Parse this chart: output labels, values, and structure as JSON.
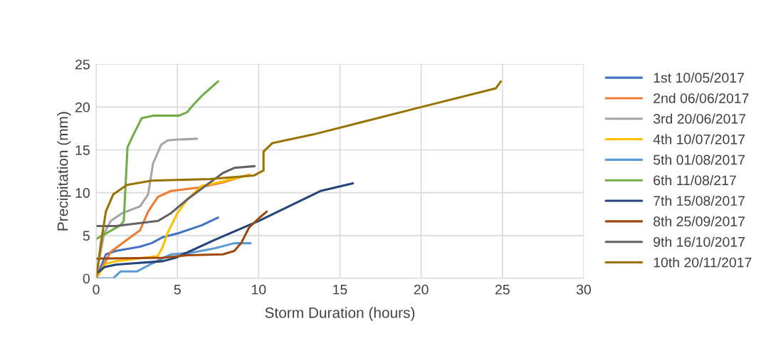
{
  "chart_data": {
    "type": "line",
    "xlabel": "Storm Duration (hours)",
    "ylabel": "Precipitation (mm)",
    "xlim": [
      0,
      30
    ],
    "xticks": [
      0,
      5,
      10,
      15,
      20,
      25,
      30
    ],
    "ylim": [
      0,
      25
    ],
    "yticks": [
      0,
      5,
      10,
      15,
      20,
      25
    ],
    "grid": true,
    "legend": "right",
    "marker": "none",
    "line_style": "solid",
    "series": [
      {
        "name": "1st 10/05/2017",
        "color": "#4472c4",
        "x": [
          0,
          0.6,
          1.2,
          2.7,
          3.4,
          4.1,
          5.1,
          6.5,
          7.5
        ],
        "values": [
          0,
          2.8,
          3.2,
          3.7,
          4.1,
          4.8,
          5.3,
          6.2,
          7.1
        ]
      },
      {
        "name": "2nd 06/06/2017",
        "color": "#ed7d31",
        "x": [
          0,
          0.5,
          0.9,
          1.9,
          2.7,
          3.2,
          3.8,
          4.6,
          6.3,
          7.8,
          9.4
        ],
        "values": [
          0,
          1.7,
          3.1,
          4.5,
          5.6,
          7.8,
          9.5,
          10.2,
          10.6,
          11.2,
          12.1
        ]
      },
      {
        "name": "3rd 20/06/2017",
        "color": "#a5a5a5",
        "x": [
          0,
          0.2,
          0.5,
          0.9,
          1.6,
          2.7,
          3.2,
          3.5,
          4.0,
          4.4,
          5.0,
          6.2
        ],
        "values": [
          0,
          2.3,
          5.3,
          6.7,
          7.6,
          8.4,
          9.8,
          13.4,
          15.6,
          16.1,
          16.2,
          16.3
        ]
      },
      {
        "name": "4th 10/07/2017",
        "color": "#ffc000",
        "x": [
          0,
          0.6,
          1.2,
          3.8,
          4.1,
          4.4,
          5.0,
          5.6,
          6.5,
          7.5,
          9.45
        ],
        "values": [
          0,
          1.7,
          2.0,
          2.6,
          3.7,
          5.3,
          7.6,
          9.2,
          10.8,
          11.2,
          12.1
        ]
      },
      {
        "name": "5th 01/08/2017",
        "color": "#5b9bd5",
        "x": [
          0,
          1.05,
          1.5,
          2.5,
          3.4,
          4.6,
          5.9,
          7.3,
          8.5,
          9.5
        ],
        "values": [
          0,
          0,
          0.8,
          0.8,
          1.7,
          2.8,
          3.0,
          3.5,
          4.1,
          4.1
        ]
      },
      {
        "name": "6th 11/08/217",
        "color": "#70ad47",
        "x": [
          0,
          1.5,
          1.7,
          1.93,
          2.2,
          2.8,
          3.5,
          5.1,
          5.6,
          6.0,
          6.5,
          7.5
        ],
        "values": [
          4.6,
          6.2,
          6.7,
          15.3,
          16.4,
          18.7,
          19.0,
          19.0,
          19.4,
          20.3,
          21.3,
          23
        ]
      },
      {
        "name": "7th 15/08/2017",
        "color": "#264478",
        "x": [
          0,
          0.5,
          1.2,
          1.9,
          4.1,
          4.9,
          7.3,
          10,
          13.8,
          15.8
        ],
        "values": [
          0.5,
          1.3,
          1.6,
          1.7,
          2.0,
          2.4,
          4.5,
          6.7,
          10.2,
          11.1
        ]
      },
      {
        "name": "8th 25/09/2017",
        "color": "#9e480e",
        "x": [
          0,
          4.1,
          5.6,
          7.8,
          8.5,
          8.95,
          9.4,
          10,
          10.5
        ],
        "values": [
          2.3,
          2.4,
          2.7,
          2.8,
          3.2,
          4.2,
          5.9,
          7.0,
          7.8
        ]
      },
      {
        "name": "9th 16/10/2017",
        "color": "#636363",
        "x": [
          0,
          1.2,
          3.8,
          4.6,
          5.6,
          6.8,
          7.8,
          8.5,
          9.75
        ],
        "values": [
          6.1,
          6.1,
          6.7,
          7.6,
          9.2,
          10.9,
          12.3,
          12.9,
          13.1
        ]
      },
      {
        "name": "10th 20/11/2017",
        "color": "#997300",
        "x": [
          0,
          0.3,
          0.6,
          1.05,
          1.9,
          3.4,
          7.0,
          9.7,
          10.3,
          10.3,
          10.85,
          13.36,
          20,
          24.6,
          24.9
        ],
        "values": [
          0,
          4.2,
          7.8,
          9.8,
          10.9,
          11.4,
          11.6,
          12,
          12.6,
          14.8,
          15.8,
          16.8,
          20,
          22.2,
          23
        ]
      }
    ]
  }
}
